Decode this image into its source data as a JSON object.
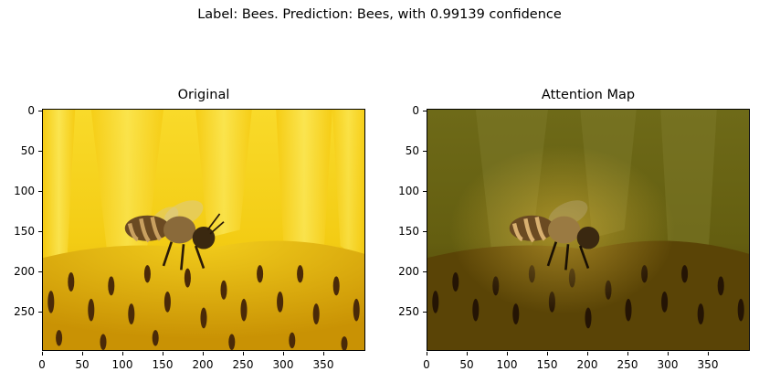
{
  "suptitle": "Label: Bees. Prediction: Bees, with 0.99139 confidence",
  "panels": [
    {
      "title": "Original"
    },
    {
      "title": "Attention Map"
    }
  ],
  "axes": {
    "y_ticks": [
      "0",
      "50",
      "100",
      "150",
      "200",
      "250"
    ],
    "x_ticks": [
      "0",
      "50",
      "100",
      "150",
      "200",
      "250",
      "300",
      "350"
    ],
    "xlim": [
      0,
      400
    ],
    "ylim": [
      300,
      0
    ]
  },
  "image": {
    "subject": "honeybee on sunflower",
    "colors": {
      "petal": "#f7d21a",
      "petal_light": "#fbe64a",
      "disk": "#e0b307",
      "floret_tip": "#4a2a08",
      "bee_body": "#6b4a22",
      "bee_stripe": "#c9a060",
      "attention_overlay": "#3a3005"
    }
  }
}
